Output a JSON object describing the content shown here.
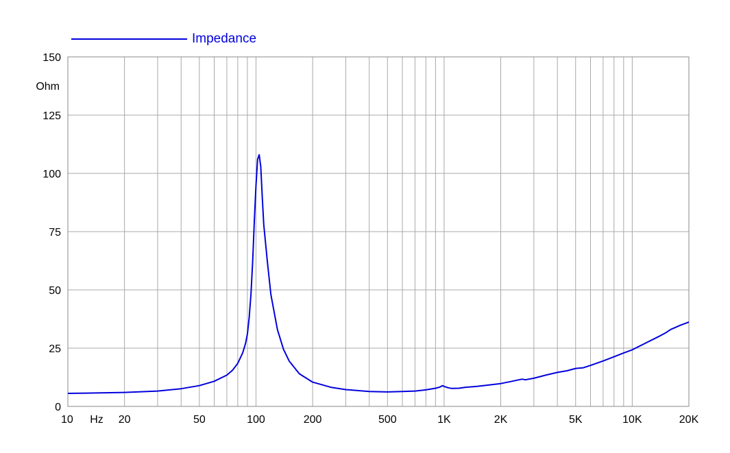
{
  "chart_data": {
    "type": "line",
    "title": "",
    "xlabel": "",
    "ylabel": "Ohm",
    "x_unit_label": "Hz",
    "x_scale": "log",
    "xlim": [
      10,
      20000
    ],
    "ylim": [
      0,
      150
    ],
    "grid": true,
    "legend_position": "top-left",
    "y_ticks": [
      0,
      25,
      50,
      75,
      100,
      125,
      150
    ],
    "y_tick_labels": [
      "0",
      "25",
      "50",
      "75",
      "100",
      "125",
      "150"
    ],
    "x_ticks": [
      10,
      20,
      50,
      100,
      200,
      500,
      1000,
      2000,
      5000,
      10000,
      20000
    ],
    "x_tick_labels": [
      "10",
      "20",
      "50",
      "100",
      "200",
      "500",
      "1K",
      "2K",
      "5K",
      "10K",
      "20K"
    ],
    "series": [
      {
        "name": "Impedance",
        "color": "#0000dd",
        "x": [
          10,
          15,
          20,
          30,
          40,
          50,
          60,
          70,
          75,
          80,
          85,
          88,
          90,
          92,
          94,
          96,
          98,
          100,
          102,
          104,
          106,
          108,
          110,
          115,
          120,
          130,
          140,
          150,
          170,
          200,
          250,
          300,
          400,
          500,
          600,
          700,
          800,
          900,
          950,
          980,
          1000,
          1050,
          1100,
          1200,
          1300,
          1500,
          2000,
          2300,
          2500,
          2600,
          2700,
          3000,
          3500,
          4000,
          4500,
          5000,
          5500,
          6000,
          7000,
          8000,
          9000,
          10000,
          12000,
          14000,
          15000,
          16000,
          18000,
          20000
        ],
        "values": [
          5.6,
          5.8,
          6.0,
          6.6,
          7.6,
          8.9,
          10.8,
          13.4,
          15.5,
          18.5,
          23,
          27,
          31,
          38,
          48,
          62,
          80,
          95,
          106,
          108,
          103,
          90,
          78,
          62,
          48,
          33,
          24.5,
          19.5,
          14,
          10.4,
          8.2,
          7.2,
          6.4,
          6.2,
          6.4,
          6.6,
          7.1,
          7.8,
          8.3,
          8.9,
          8.6,
          8.0,
          7.7,
          7.8,
          8.2,
          8.6,
          9.8,
          10.8,
          11.4,
          11.7,
          11.4,
          12.1,
          13.5,
          14.6,
          15.3,
          16.3,
          16.6,
          17.6,
          19.5,
          21.3,
          22.9,
          24.3,
          27.5,
          30.2,
          31.5,
          33.0,
          34.8,
          36.2
        ]
      }
    ]
  }
}
